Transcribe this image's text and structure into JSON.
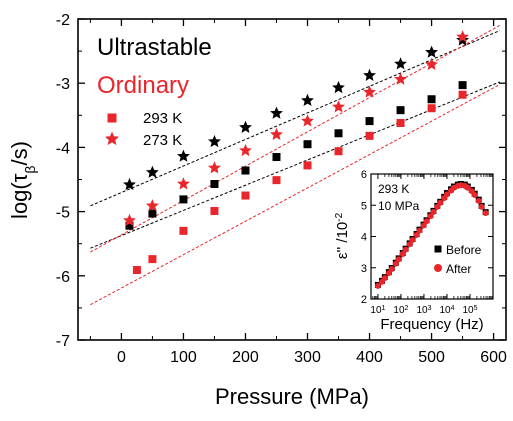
{
  "chart_data": [
    {
      "type": "scatter",
      "xlabel": "Pressure (MPa)",
      "ylabel": "log(τ_β/s)",
      "xlim": [
        -70,
        620
      ],
      "ylim": [
        -7,
        -2
      ],
      "x_ticks": [
        0,
        100,
        200,
        300,
        400,
        500,
        600
      ],
      "y_ticks": [
        -7,
        -6,
        -5,
        -4,
        -3,
        -2
      ],
      "grid": false,
      "legend": {
        "materials": [
          {
            "label": "Ultrastable",
            "color": "#000000"
          },
          {
            "label": "Ordinary",
            "color": "#e8262b"
          }
        ],
        "markers": [
          {
            "label": "293 K",
            "marker": "square"
          },
          {
            "label": "273 K",
            "marker": "star"
          }
        ],
        "placement": "top-left"
      },
      "series": [
        {
          "material": "Ultrastable",
          "temperature": "293 K",
          "marker": "square",
          "color": "#000000",
          "x": [
            13,
            50,
            100,
            150,
            200,
            250,
            300,
            350,
            400,
            450,
            500,
            550
          ],
          "y": [
            -5.22,
            -5.03,
            -4.81,
            -4.57,
            -4.36,
            -4.15,
            -3.95,
            -3.78,
            -3.59,
            -3.42,
            -3.25,
            -3.03
          ],
          "fit": [
            [
              -50,
              -5.57
            ],
            [
              610,
              -2.98
            ]
          ]
        },
        {
          "material": "Ultrastable",
          "temperature": "273 K",
          "marker": "star",
          "color": "#000000",
          "x": [
            13,
            50,
            100,
            150,
            200,
            250,
            300,
            350,
            400,
            450,
            500,
            550
          ],
          "y": [
            -4.58,
            -4.39,
            -4.14,
            -3.91,
            -3.69,
            -3.47,
            -3.27,
            -3.07,
            -2.88,
            -2.7,
            -2.52,
            -2.33
          ],
          "fit": [
            [
              -50,
              -4.91
            ],
            [
              610,
              -2.18
            ]
          ]
        },
        {
          "material": "Ordinary",
          "temperature": "293 K",
          "marker": "square",
          "color": "#e8262b",
          "x": [
            25,
            50,
            100,
            150,
            200,
            250,
            300,
            350,
            400,
            450,
            500,
            550
          ],
          "y": [
            -5.91,
            -5.74,
            -5.3,
            -4.99,
            -4.75,
            -4.51,
            -4.28,
            -4.06,
            -3.82,
            -3.62,
            -3.39,
            -3.18
          ],
          "fit": [
            [
              -50,
              -6.45
            ],
            [
              610,
              -3.02
            ]
          ]
        },
        {
          "material": "Ordinary",
          "temperature": "273 K",
          "marker": "star",
          "color": "#e8262b",
          "x": [
            13,
            50,
            100,
            150,
            200,
            250,
            300,
            350,
            400,
            450,
            500,
            550
          ],
          "y": [
            -5.14,
            -4.91,
            -4.57,
            -4.32,
            -4.05,
            -3.8,
            -3.59,
            -3.37,
            -3.14,
            -2.94,
            -2.71,
            -2.28
          ],
          "fit": [
            [
              -50,
              -5.63
            ],
            [
              610,
              -2.1
            ]
          ]
        }
      ]
    },
    {
      "type": "scatter",
      "inset": true,
      "xlabel": "Frequency (Hz)",
      "ylabel": "ε'' /10^-2",
      "xscale": "log",
      "xlim": [
        5,
        1000000
      ],
      "ylim": [
        2,
        6
      ],
      "x_ticks": [
        1,
        2,
        3,
        4,
        5
      ],
      "y_ticks": [
        2,
        3,
        4,
        5,
        6
      ],
      "annotations": [
        "293 K",
        "10 MPa"
      ],
      "legend": {
        "placement": "right"
      },
      "series": [
        {
          "name": "Before",
          "marker": "square",
          "color": "#000000",
          "x": [
            10,
            15,
            20,
            30,
            40,
            60,
            80,
            120,
            160,
            240,
            320,
            480,
            640,
            960,
            1300,
            1900,
            2600,
            3800,
            5100,
            7600,
            10000,
            15000,
            20000,
            30000,
            40000,
            60000,
            80000,
            120000,
            160000,
            240000,
            320000,
            480000
          ],
          "y": [
            2.45,
            2.58,
            2.7,
            2.86,
            2.99,
            3.16,
            3.3,
            3.47,
            3.61,
            3.78,
            3.92,
            4.08,
            4.22,
            4.38,
            4.52,
            4.68,
            4.82,
            4.98,
            5.11,
            5.27,
            5.39,
            5.51,
            5.6,
            5.66,
            5.68,
            5.66,
            5.6,
            5.49,
            5.37,
            5.18,
            4.98,
            4.78
          ]
        },
        {
          "name": "After",
          "marker": "circle",
          "color": "#e8262b",
          "x": [
            10,
            15,
            20,
            30,
            40,
            60,
            80,
            120,
            160,
            240,
            320,
            480,
            640,
            960,
            1300,
            1900,
            2600,
            3800,
            5100,
            7600,
            10000,
            15000,
            20000,
            30000,
            40000,
            60000,
            80000,
            120000,
            160000,
            240000,
            320000,
            480000
          ],
          "y": [
            2.42,
            2.55,
            2.67,
            2.83,
            2.96,
            3.13,
            3.27,
            3.44,
            3.58,
            3.75,
            3.89,
            4.05,
            4.19,
            4.35,
            4.49,
            4.65,
            4.79,
            4.95,
            5.08,
            5.23,
            5.35,
            5.47,
            5.56,
            5.62,
            5.64,
            5.62,
            5.56,
            5.45,
            5.33,
            5.14,
            4.95,
            4.75
          ]
        }
      ]
    }
  ]
}
